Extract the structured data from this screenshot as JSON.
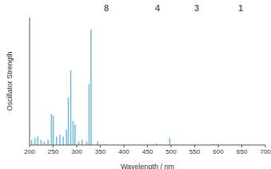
{
  "chart_data": {
    "type": "bar",
    "x_label": "Wavelength / nm",
    "y_label": "Oscillator Strength",
    "x": [
      205,
      212,
      218,
      225,
      232,
      240,
      247,
      251,
      258,
      265,
      272,
      279,
      283,
      288,
      293,
      297,
      305,
      312,
      322,
      327,
      331,
      345,
      360,
      470,
      498,
      510,
      590
    ],
    "values": [
      0.03,
      0.04,
      0.05,
      0.03,
      0.02,
      0.03,
      0.18,
      0.17,
      0.05,
      0.06,
      0.05,
      0.09,
      0.28,
      0.44,
      0.14,
      0.12,
      0.02,
      0.03,
      0.02,
      0.36,
      0.68,
      0.02,
      0.005,
      0.01,
      0.04,
      0.005,
      0.005
    ],
    "color": "#6cbbe8",
    "xlim": [
      200,
      700
    ],
    "xticks": [
      200,
      250,
      300,
      350,
      400,
      450,
      500,
      550,
      600,
      650,
      700
    ],
    "ylim": [
      0,
      0.75
    ],
    "tick_labels": "x",
    "annotations": [
      "8",
      "4",
      "3",
      "1"
    ]
  }
}
